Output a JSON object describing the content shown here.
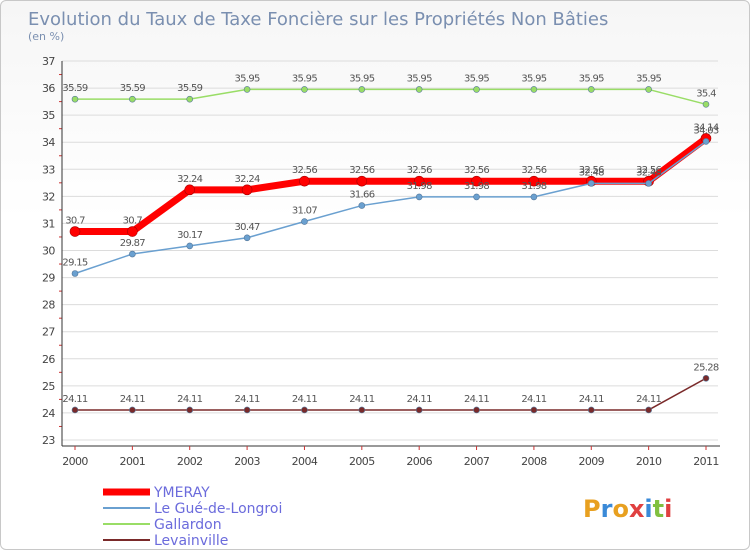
{
  "chart_data": {
    "type": "line",
    "title": "Evolution du Taux de Taxe Foncière sur les Propriétés Non Bâties",
    "subtitle": "(en %)",
    "x": [
      "2000",
      "2001",
      "2002",
      "2003",
      "2004",
      "2005",
      "2006",
      "2007",
      "2008",
      "2009",
      "2010",
      "2011"
    ],
    "ylim": [
      23,
      37
    ],
    "yticks": [
      "23",
      "24",
      "25",
      "26",
      "27",
      "28",
      "29",
      "30",
      "31",
      "32",
      "33",
      "34",
      "35",
      "36",
      "37"
    ],
    "series": [
      {
        "name": "YMERAY",
        "color": "#ff0000",
        "width": 7,
        "values": [
          30.7,
          30.7,
          32.24,
          32.24,
          32.56,
          32.56,
          32.56,
          32.56,
          32.56,
          32.56,
          32.56,
          34.14
        ],
        "labels": [
          "30.7",
          "30.7",
          "32.24",
          "32.24",
          "32.56",
          "32.56",
          "32.56",
          "32.56",
          "32.56",
          "32.56",
          "32.56",
          "34.14"
        ]
      },
      {
        "name": "Le Gué-de-Longroi",
        "color": "#6aa0d0",
        "width": 1.5,
        "values": [
          29.15,
          29.87,
          30.17,
          30.47,
          31.07,
          31.66,
          31.98,
          31.98,
          31.98,
          32.48,
          32.48,
          34.03
        ],
        "labels": [
          "29.15",
          "29.87",
          "30.17",
          "30.47",
          "31.07",
          "31.66",
          "31.98",
          "31.98",
          "31.98",
          "32.48",
          "32.48",
          "34.03"
        ]
      },
      {
        "name": "Gallardon",
        "color": "#99dd66",
        "width": 1.5,
        "values": [
          35.59,
          35.59,
          35.59,
          35.95,
          35.95,
          35.95,
          35.95,
          35.95,
          35.95,
          35.95,
          35.95,
          35.4
        ],
        "labels": [
          "35.59",
          "35.59",
          "35.59",
          "35.95",
          "35.95",
          "35.95",
          "35.95",
          "35.95",
          "35.95",
          "35.95",
          "35.95",
          "35.4"
        ]
      },
      {
        "name": "Levainville",
        "color": "#7a2a2a",
        "width": 1.5,
        "values": [
          24.11,
          24.11,
          24.11,
          24.11,
          24.11,
          24.11,
          24.11,
          24.11,
          24.11,
          24.11,
          24.11,
          25.28
        ],
        "labels": [
          "24.11",
          "24.11",
          "24.11",
          "24.11",
          "24.11",
          "24.11",
          "24.11",
          "24.11",
          "24.11",
          "24.11",
          "24.11",
          "25.28"
        ]
      }
    ],
    "legend": [
      "YMERAY",
      "Le Gué-de-Longroi",
      "Gallardon",
      "Levainville"
    ],
    "grid": "horizontal"
  },
  "logo": {
    "text": "Proxiti"
  }
}
